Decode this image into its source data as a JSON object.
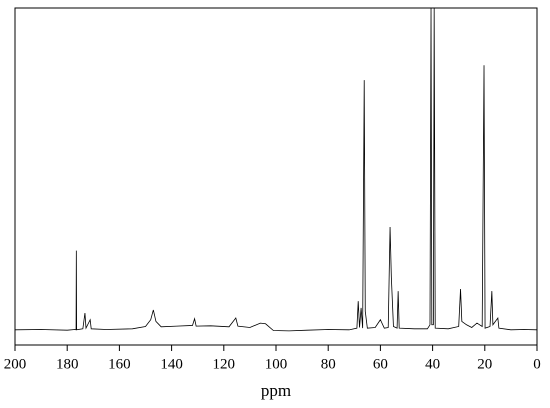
{
  "chart_data": {
    "type": "line",
    "x_label": "ppm",
    "x": [
      200,
      190,
      180,
      177,
      176.6,
      176.5,
      176.4,
      174,
      173.2,
      172.8,
      171.2,
      170.8,
      165,
      155,
      150,
      148,
      147,
      146,
      144,
      138,
      132,
      131.2,
      130.6,
      125,
      118,
      115.4,
      114.6,
      110,
      106,
      104,
      101,
      95,
      88,
      80,
      72,
      69,
      68.5,
      68,
      67.4,
      66.8,
      66.2,
      65.8,
      65,
      62,
      60,
      58.5,
      57,
      56.3,
      55.8,
      55,
      53.6,
      53.2,
      52.8,
      47,
      42,
      41,
      40.6,
      40.3,
      39.7,
      39.4,
      39,
      34,
      30,
      29.3,
      28.8,
      27,
      25,
      23,
      21,
      20.3,
      19.9,
      18,
      17.3,
      16.9,
      15,
      14.6,
      10,
      5,
      0
    ],
    "series": [
      {
        "color": "#000000",
        "values": [
          4.5,
          4.6,
          4.4,
          4.6,
          4.5,
          28,
          4.5,
          4.8,
          9.5,
          5,
          7.5,
          4.8,
          4.6,
          4.8,
          5.5,
          7.5,
          10.4,
          7,
          5.4,
          5.6,
          5.8,
          7.8,
          5.6,
          5.7,
          5.4,
          8,
          5.6,
          5.2,
          6.5,
          6.3,
          4.3,
          4.2,
          4.4,
          4.6,
          4.5,
          5,
          13,
          5.2,
          11,
          5,
          78.6,
          10,
          5,
          5.2,
          7.5,
          5,
          5.2,
          35,
          20,
          5.5,
          5,
          16,
          5,
          4.8,
          4.8,
          6,
          100,
          6,
          6,
          100,
          5,
          4.8,
          5.5,
          16.6,
          7,
          6,
          5.2,
          6.5,
          5.5,
          83,
          5,
          5.5,
          16,
          6,
          8,
          5,
          4.5,
          4.6,
          4.5
        ]
      }
    ],
    "xlim": [
      200,
      0
    ],
    "xticks": [
      200,
      180,
      160,
      140,
      120,
      100,
      80,
      60,
      40,
      20,
      0
    ],
    "ylim": [
      0,
      100
    ]
  }
}
